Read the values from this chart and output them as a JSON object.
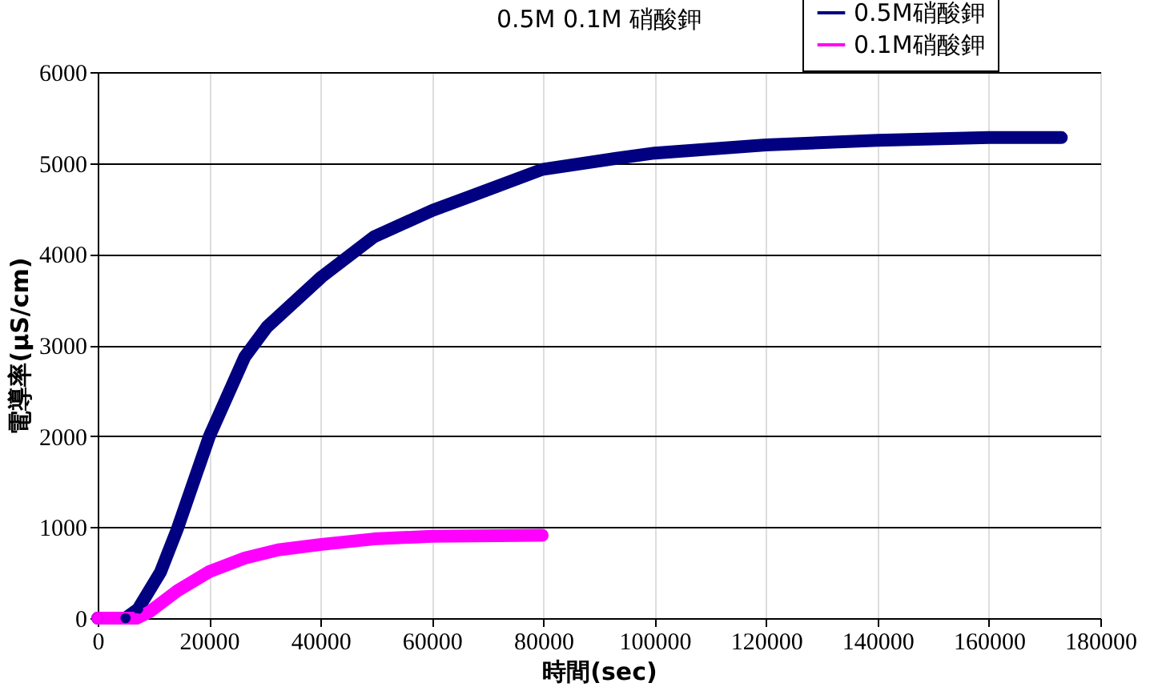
{
  "chart_data": {
    "type": "line",
    "title": "0.5M 0.1M 硝酸鉀",
    "xlabel": "時間(sec)",
    "ylabel": "電導率(μS/cm)",
    "xlim": [
      0,
      180000
    ],
    "xticks": [
      0,
      20000,
      40000,
      60000,
      80000,
      100000,
      120000,
      140000,
      160000,
      180000
    ],
    "ylim": [
      0,
      6000
    ],
    "yticks": [
      0,
      1000,
      2000,
      3000,
      4000,
      5000,
      6000
    ],
    "grid": true,
    "legend": "top right",
    "marker": "circle",
    "line_style": "solid",
    "series": [
      {
        "name": "0.5M硝酸鉀",
        "color": "#000080",
        "x": [
          0,
          5000,
          7250,
          11300,
          14300,
          20000,
          26400,
          30400,
          40200,
          49600,
          60100,
          66700,
          79800,
          92900,
          100000,
          120000,
          140000,
          160000,
          173000
        ],
        "values": [
          0,
          0,
          100,
          510,
          980,
          1990,
          2870,
          3200,
          3750,
          4190,
          4480,
          4630,
          4930,
          5050,
          5110,
          5200,
          5250,
          5280,
          5280
        ]
      },
      {
        "name": "0.1M硝酸鉀",
        "color": "#ff00ff",
        "x": [
          0,
          7000,
          9300,
          14300,
          20000,
          26400,
          32400,
          40200,
          49600,
          60100,
          79800
        ],
        "values": [
          0,
          0,
          70,
          300,
          510,
          660,
          750,
          810,
          870,
          900,
          910
        ]
      }
    ]
  }
}
